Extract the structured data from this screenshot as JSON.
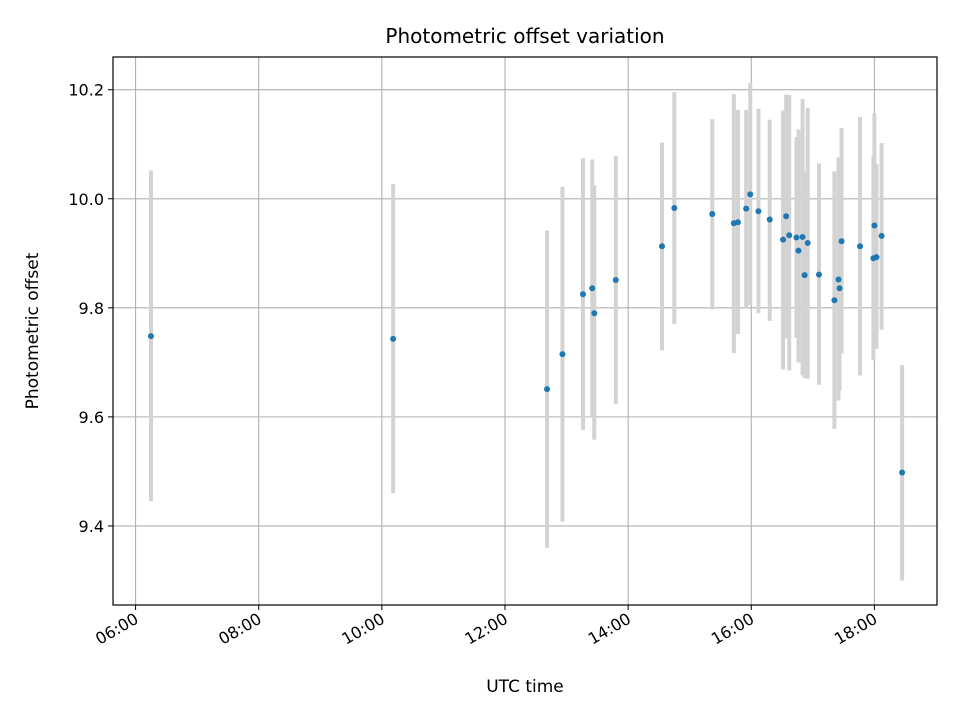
{
  "chart_data": {
    "type": "scatter",
    "title": "Photometric offset variation",
    "xlabel": "UTC time",
    "ylabel": "Photometric offset",
    "x_unit": "UTC time (HH:MM)",
    "xlim": [
      "05:38",
      "19:01"
    ],
    "ylim": [
      9.255,
      10.26
    ],
    "x_ticks": [
      "06:00",
      "08:00",
      "10:00",
      "12:00",
      "14:00",
      "16:00",
      "18:00"
    ],
    "y_ticks": [
      "9.4",
      "9.6",
      "9.8",
      "10.0",
      "10.2"
    ],
    "grid": true,
    "errorbar_color": "#d3d3d3",
    "point_color": "#1f77b4",
    "points": [
      {
        "x": "06:15",
        "y": 9.748,
        "ylo": 9.445,
        "yhi": 10.052
      },
      {
        "x": "10:11",
        "y": 9.743,
        "ylo": 9.46,
        "yhi": 10.027
      },
      {
        "x": "12:41",
        "y": 9.651,
        "ylo": 9.36,
        "yhi": 9.942
      },
      {
        "x": "12:56",
        "y": 9.715,
        "ylo": 9.408,
        "yhi": 10.022
      },
      {
        "x": "13:16",
        "y": 9.825,
        "ylo": 9.576,
        "yhi": 10.074
      },
      {
        "x": "13:25",
        "y": 9.836,
        "ylo": 9.6,
        "yhi": 10.072
      },
      {
        "x": "13:27",
        "y": 9.79,
        "ylo": 9.558,
        "yhi": 10.025
      },
      {
        "x": "13:48",
        "y": 9.851,
        "ylo": 9.624,
        "yhi": 10.078
      },
      {
        "x": "14:33",
        "y": 9.913,
        "ylo": 9.722,
        "yhi": 10.103
      },
      {
        "x": "14:45",
        "y": 9.983,
        "ylo": 9.77,
        "yhi": 10.196
      },
      {
        "x": "15:22",
        "y": 9.972,
        "ylo": 9.797,
        "yhi": 10.146
      },
      {
        "x": "15:43",
        "y": 9.955,
        "ylo": 9.717,
        "yhi": 10.192
      },
      {
        "x": "15:47",
        "y": 9.957,
        "ylo": 9.752,
        "yhi": 10.163
      },
      {
        "x": "15:55",
        "y": 9.982,
        "ylo": 9.8,
        "yhi": 10.163
      },
      {
        "x": "15:59",
        "y": 10.008,
        "ylo": 9.805,
        "yhi": 10.212
      },
      {
        "x": "16:07",
        "y": 9.977,
        "ylo": 9.79,
        "yhi": 10.165
      },
      {
        "x": "16:18",
        "y": 9.962,
        "ylo": 9.776,
        "yhi": 10.145
      },
      {
        "x": "16:31",
        "y": 9.925,
        "ylo": 9.687,
        "yhi": 10.162
      },
      {
        "x": "16:34",
        "y": 9.968,
        "ylo": 9.744,
        "yhi": 10.191
      },
      {
        "x": "16:37",
        "y": 9.933,
        "ylo": 9.685,
        "yhi": 10.19
      },
      {
        "x": "16:44",
        "y": 9.929,
        "ylo": 9.745,
        "yhi": 10.113
      },
      {
        "x": "16:46",
        "y": 9.905,
        "ylo": 9.7,
        "yhi": 10.127
      },
      {
        "x": "16:50",
        "y": 9.93,
        "ylo": 9.676,
        "yhi": 10.183
      },
      {
        "x": "16:52",
        "y": 9.86,
        "ylo": 9.671,
        "yhi": 10.05
      },
      {
        "x": "16:55",
        "y": 9.919,
        "ylo": 9.67,
        "yhi": 10.167
      },
      {
        "x": "17:06",
        "y": 9.861,
        "ylo": 9.659,
        "yhi": 10.065
      },
      {
        "x": "17:21",
        "y": 9.814,
        "ylo": 9.578,
        "yhi": 10.05
      },
      {
        "x": "17:25",
        "y": 9.852,
        "ylo": 9.63,
        "yhi": 10.076
      },
      {
        "x": "17:26",
        "y": 9.836,
        "ylo": 9.648,
        "yhi": 10.023
      },
      {
        "x": "17:28",
        "y": 9.922,
        "ylo": 9.716,
        "yhi": 10.13
      },
      {
        "x": "17:46",
        "y": 9.913,
        "ylo": 9.676,
        "yhi": 10.15
      },
      {
        "x": "17:59",
        "y": 9.891,
        "ylo": 9.704,
        "yhi": 10.077
      },
      {
        "x": "18:00",
        "y": 9.951,
        "ylo": 9.739,
        "yhi": 10.157
      },
      {
        "x": "18:02",
        "y": 9.893,
        "ylo": 9.725,
        "yhi": 10.063
      },
      {
        "x": "18:07",
        "y": 9.932,
        "ylo": 9.76,
        "yhi": 10.102
      },
      {
        "x": "18:27",
        "y": 9.498,
        "ylo": 9.3,
        "yhi": 9.695
      }
    ]
  }
}
